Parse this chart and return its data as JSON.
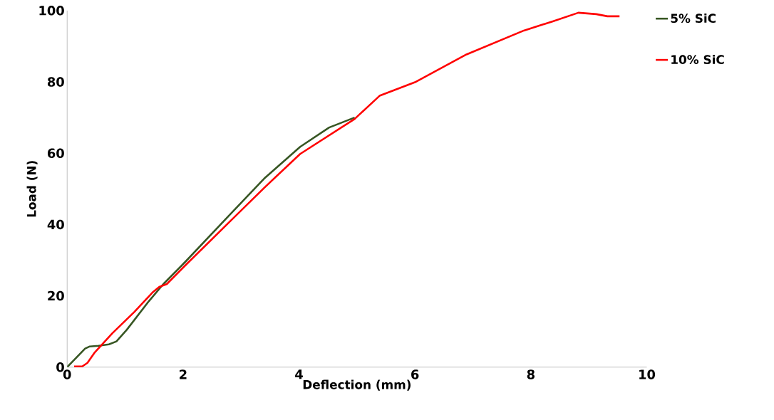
{
  "chart_data": {
    "type": "line",
    "xlabel": "Deflection (mm)",
    "ylabel": "Load (N)",
    "xlim": [
      0,
      10
    ],
    "ylim": [
      0,
      100
    ],
    "xticks": [
      0,
      2,
      4,
      6,
      8,
      10
    ],
    "yticks": [
      0,
      20,
      40,
      60,
      80,
      100
    ],
    "grid": false,
    "legend": "right",
    "marker": "none",
    "line_style": "solid",
    "series": [
      {
        "name": "5% SiC",
        "color": "#375623",
        "x": [
          0,
          0.31,
          0.39,
          0.54,
          0.72,
          0.85,
          1.03,
          1.41,
          1.66,
          2.03,
          2.78,
          3.4,
          4.02,
          4.52,
          4.96
        ],
        "values": [
          0,
          5.2,
          5.8,
          6,
          6.4,
          7.2,
          10.5,
          18.5,
          23.3,
          29.4,
          42.3,
          52.9,
          61.8,
          67.2,
          70
        ]
      },
      {
        "name": "10% SiC",
        "color": "#ff0000",
        "x": [
          0.12,
          0.26,
          0.35,
          0.47,
          0.78,
          1.16,
          1.47,
          1.59,
          1.72,
          2.03,
          2.78,
          3.4,
          4.02,
          4.96,
          5.39,
          6.0,
          6.89,
          7.88,
          8.38,
          8.82,
          9.13,
          9.32,
          9.53
        ],
        "values": [
          0.2,
          0.2,
          1.2,
          4,
          9.5,
          15.5,
          20.9,
          22.5,
          23.3,
          28.4,
          40.4,
          50.3,
          59.8,
          69.6,
          76.1,
          79.9,
          87.7,
          94.4,
          97,
          99.4,
          99,
          98.4,
          98.4
        ]
      }
    ]
  }
}
